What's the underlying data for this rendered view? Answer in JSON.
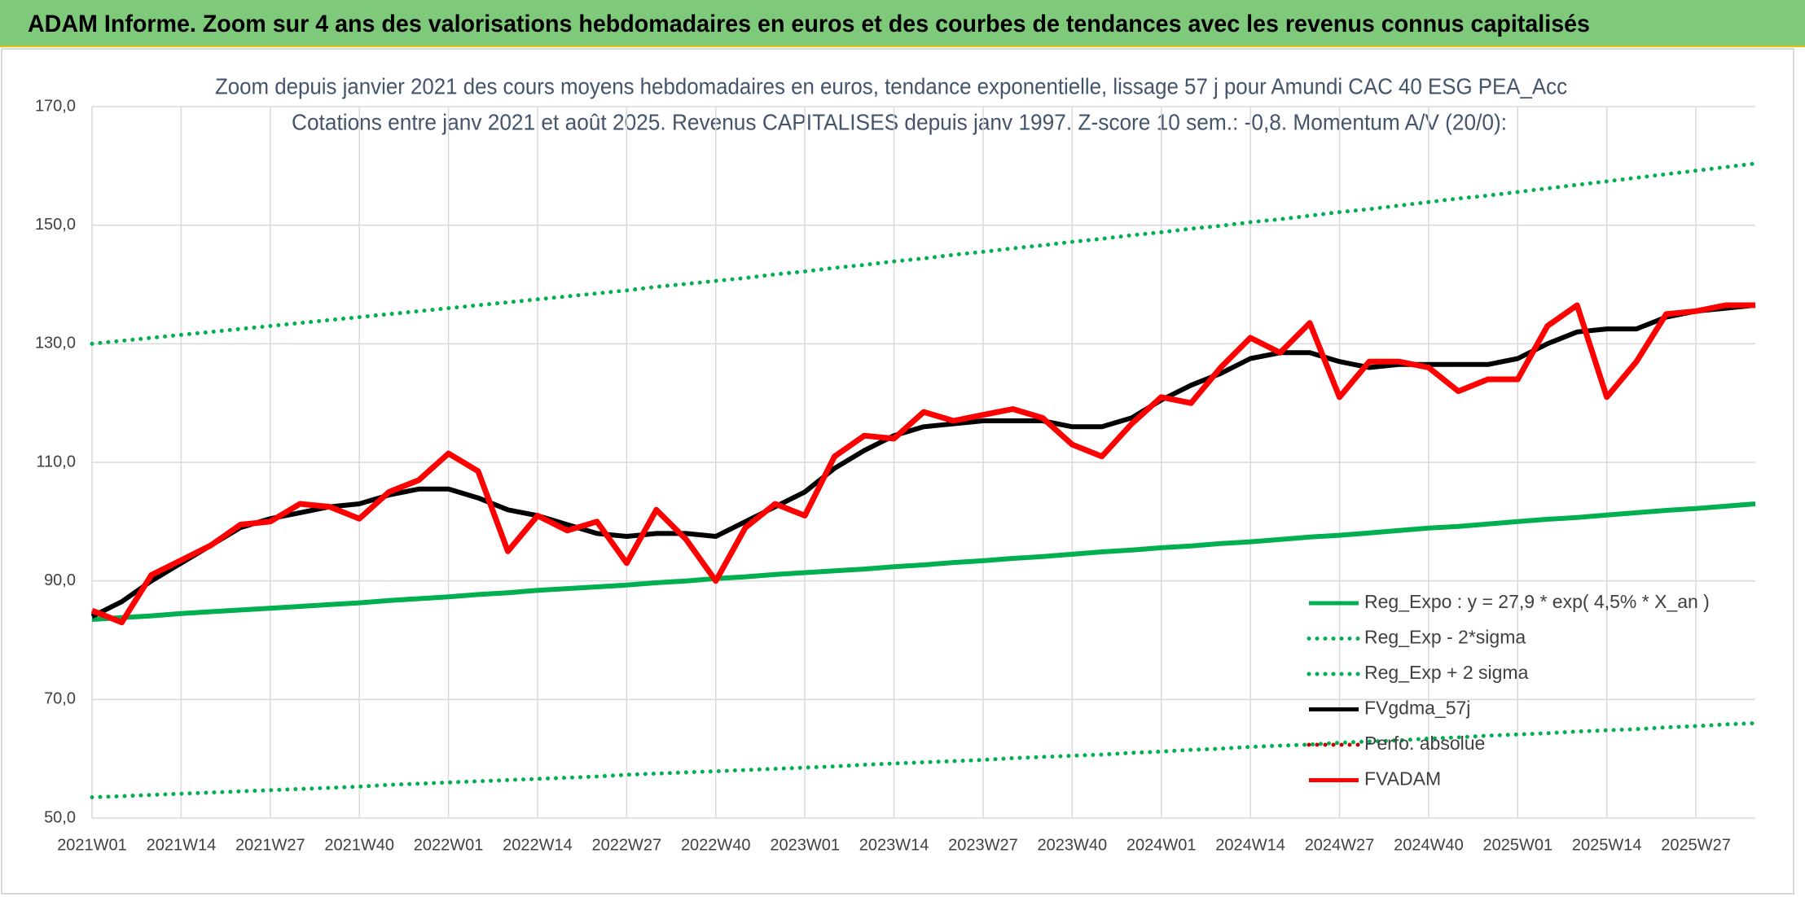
{
  "banner": {
    "title": "ADAM Informe. Zoom sur 4 ans des valorisations hebdomadaires en euros et des courbes de tendances avec les revenus connus capitalisés"
  },
  "chart_data": {
    "type": "line",
    "title": "Zoom depuis janvier 2021 des cours moyens hebdomadaires en euros, tendance exponentielle, lissage 57 j pour Amundi CAC 40 ESG PEA_Acc",
    "subtitle": "Cotations entre janv 2021 et août 2025. Revenus CAPITALISES depuis janv 1997. Z-score 10 sem.: -0,8. Momentum A/V (20/0):",
    "categories": [
      "2021W01",
      null,
      null,
      "2021W14",
      null,
      null,
      "2021W27",
      null,
      null,
      "2021W40",
      null,
      null,
      "2022W01",
      null,
      null,
      "2022W14",
      null,
      null,
      "2022W27",
      null,
      null,
      "2022W40",
      null,
      null,
      "2023W01",
      null,
      null,
      "2023W14",
      null,
      null,
      "2023W27",
      null,
      null,
      "2023W40",
      null,
      null,
      "2024W01",
      null,
      null,
      "2024W14",
      null,
      null,
      "2024W27",
      null,
      null,
      "2024W40",
      null,
      null,
      "2025W01",
      null,
      null,
      "2025W14",
      null,
      null,
      "2025W27",
      null,
      null
    ],
    "ylim": [
      50,
      170
    ],
    "yticks": [
      {
        "value": 50,
        "label": "50,0"
      },
      {
        "value": 70,
        "label": "70,0"
      },
      {
        "value": 90,
        "label": "90,0"
      },
      {
        "value": 110,
        "label": "110,0"
      },
      {
        "value": 130,
        "label": "130,0"
      },
      {
        "value": 150,
        "label": "150,0"
      },
      {
        "value": 170,
        "label": "170,0"
      }
    ],
    "grid": true,
    "legend": "lower right",
    "series": [
      {
        "name": "Reg_Expo : y = 27,9 * exp( 4,5% *  X_an )",
        "color": "#00b050",
        "dash": "solid",
        "values": [
          83.5,
          83.8,
          84.1,
          84.5,
          84.8,
          85.1,
          85.4,
          85.7,
          86.0,
          86.3,
          86.7,
          87.0,
          87.3,
          87.7,
          88.0,
          88.4,
          88.7,
          89.0,
          89.3,
          89.7,
          90.0,
          90.4,
          90.7,
          91.1,
          91.4,
          91.7,
          92.0,
          92.4,
          92.7,
          93.1,
          93.4,
          93.8,
          94.1,
          94.5,
          94.9,
          95.2,
          95.6,
          95.9,
          96.3,
          96.6,
          97.0,
          97.4,
          97.7,
          98.1,
          98.5,
          98.9,
          99.2,
          99.6,
          100.0,
          100.4,
          100.7,
          101.1,
          101.5,
          101.9,
          102.2,
          102.6,
          103.0
        ]
      },
      {
        "name": "Reg_Exp - 2*sigma",
        "color": "#00b050",
        "dash": "dotted",
        "values": [
          53.5,
          53.7,
          53.9,
          54.1,
          54.3,
          54.5,
          54.7,
          54.9,
          55.1,
          55.3,
          55.6,
          55.8,
          56.0,
          56.2,
          56.4,
          56.6,
          56.8,
          57.0,
          57.3,
          57.5,
          57.7,
          57.9,
          58.1,
          58.3,
          58.5,
          58.7,
          59.0,
          59.2,
          59.4,
          59.6,
          59.8,
          60.1,
          60.3,
          60.5,
          60.7,
          61.0,
          61.2,
          61.5,
          61.7,
          62.0,
          62.2,
          62.4,
          62.7,
          62.9,
          63.1,
          63.4,
          63.6,
          63.9,
          64.1,
          64.3,
          64.6,
          64.8,
          65.0,
          65.3,
          65.5,
          65.8,
          66.0
        ]
      },
      {
        "name": "Reg_Exp + 2 sigma",
        "color": "#00b050",
        "dash": "dotted",
        "values": [
          130.0,
          130.5,
          131.0,
          131.5,
          132.0,
          132.5,
          133.0,
          133.5,
          134.0,
          134.5,
          135.0,
          135.5,
          136.0,
          136.5,
          137.0,
          137.5,
          138.0,
          138.5,
          139.0,
          139.6,
          140.1,
          140.6,
          141.1,
          141.7,
          142.2,
          142.8,
          143.3,
          143.9,
          144.4,
          145.0,
          145.5,
          146.1,
          146.6,
          147.2,
          147.7,
          148.3,
          148.8,
          149.4,
          149.9,
          150.5,
          151.0,
          151.6,
          152.2,
          152.7,
          153.3,
          153.9,
          154.5,
          155.0,
          155.6,
          156.2,
          156.8,
          157.4,
          158.0,
          158.6,
          159.2,
          159.8,
          160.4
        ]
      },
      {
        "name": "FVgdma_57j",
        "color": "#000000",
        "dash": "solid",
        "values": [
          84,
          86.5,
          90,
          93,
          96,
          99,
          100.5,
          101.5,
          102.5,
          103,
          104.5,
          105.5,
          105.5,
          104,
          102,
          101,
          99.5,
          98,
          97.5,
          98,
          98,
          97.5,
          100,
          102.5,
          105,
          109,
          112,
          114.5,
          116,
          116.5,
          117,
          117,
          117,
          116,
          116,
          117.5,
          120.5,
          123,
          125,
          127.5,
          128.5,
          128.5,
          127,
          126,
          126.5,
          126.5,
          126.5,
          126.5,
          127.5,
          130,
          132,
          132.5,
          132.5,
          134.5,
          135.5,
          136,
          136.5
        ]
      },
      {
        "name": "Perfo. absolue",
        "color": "#c00000",
        "dash": "dotted",
        "values": [
          null,
          null,
          null,
          null,
          null,
          null,
          null,
          null,
          null,
          null,
          null,
          null,
          null,
          null,
          null,
          null,
          null,
          null,
          null,
          null,
          null,
          null,
          null,
          null,
          null,
          null,
          null,
          null,
          null,
          null,
          null,
          null,
          null,
          null,
          null,
          null,
          null,
          null,
          null,
          null,
          null,
          null,
          null,
          null,
          null,
          null,
          null,
          null,
          null,
          null,
          null,
          null,
          null,
          null,
          null,
          null,
          null
        ]
      },
      {
        "name": "FVADAM",
        "color": "#ff0000",
        "dash": "solid",
        "values": [
          85,
          83,
          91,
          93.5,
          96,
          99.5,
          100,
          103,
          102.5,
          100.5,
          105,
          107,
          111.5,
          108.5,
          95,
          101,
          98.5,
          100,
          93,
          102,
          97,
          90,
          99,
          103,
          101,
          111,
          114.5,
          114,
          118.5,
          117,
          118,
          119,
          117.5,
          113,
          111,
          116.5,
          121,
          120,
          126,
          131,
          128.5,
          133.5,
          121,
          127,
          127,
          126,
          122,
          124,
          124,
          133,
          136.5,
          121,
          127,
          135,
          135.5,
          136.5,
          136.5
        ]
      }
    ]
  }
}
